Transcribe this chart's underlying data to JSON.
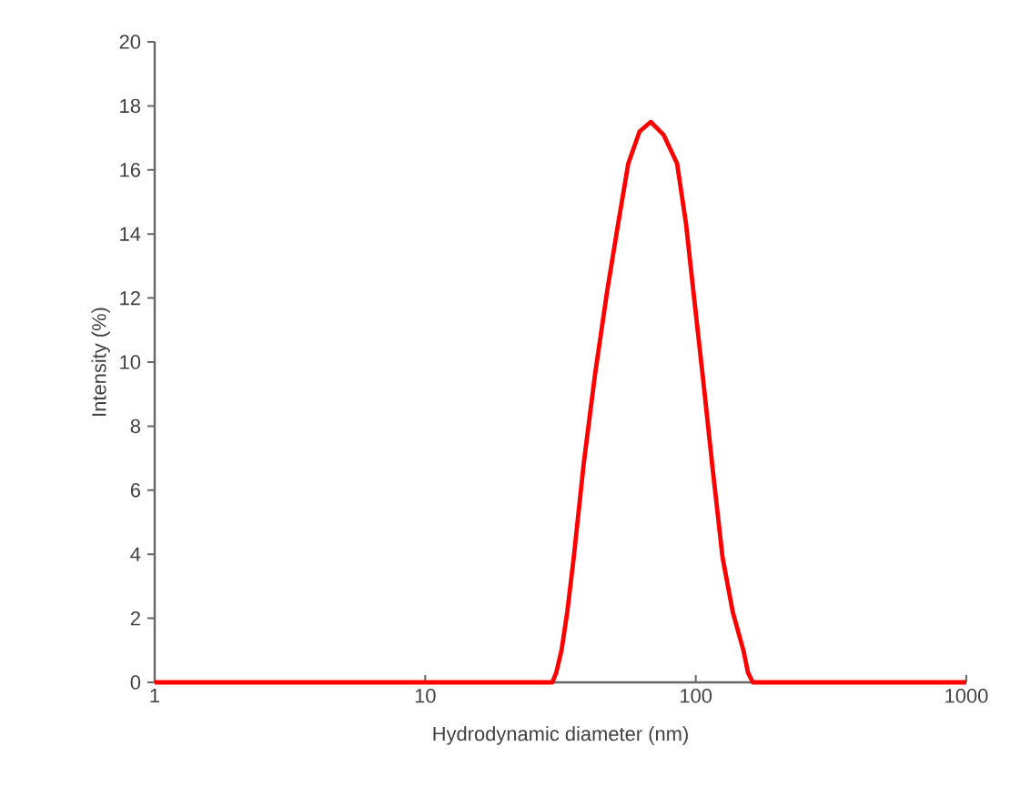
{
  "chart_data": {
    "type": "line",
    "xlabel": "Hydrodynamic diameter (nm)",
    "ylabel": "Intensity (%)",
    "log": "x",
    "xlim": [
      1,
      1000
    ],
    "xticks": [
      1,
      10,
      100,
      1000
    ],
    "ylim": [
      0,
      20
    ],
    "yticks": [
      0,
      2,
      4,
      6,
      8,
      10,
      12,
      14,
      16,
      18,
      20
    ],
    "grid": false,
    "line_style": "solid",
    "series": [
      {
        "color": "#ff0000",
        "x": [
          1,
          29.5,
          30.5,
          31.9,
          33.5,
          35.4,
          38.5,
          42.4,
          47,
          51.6,
          56.3,
          62,
          68.2,
          76,
          85.3,
          92.1,
          98,
          106,
          115,
          125.6,
          137,
          150,
          156,
          162.5,
          1000
        ],
        "values": [
          0,
          0,
          0.3,
          1.0,
          2.2,
          3.9,
          6.8,
          9.6,
          12.2,
          14.3,
          16.2,
          17.2,
          17.5,
          17.1,
          16.2,
          14.3,
          12.2,
          9.6,
          6.8,
          3.9,
          2.2,
          1.0,
          0.3,
          0,
          0
        ]
      }
    ]
  }
}
